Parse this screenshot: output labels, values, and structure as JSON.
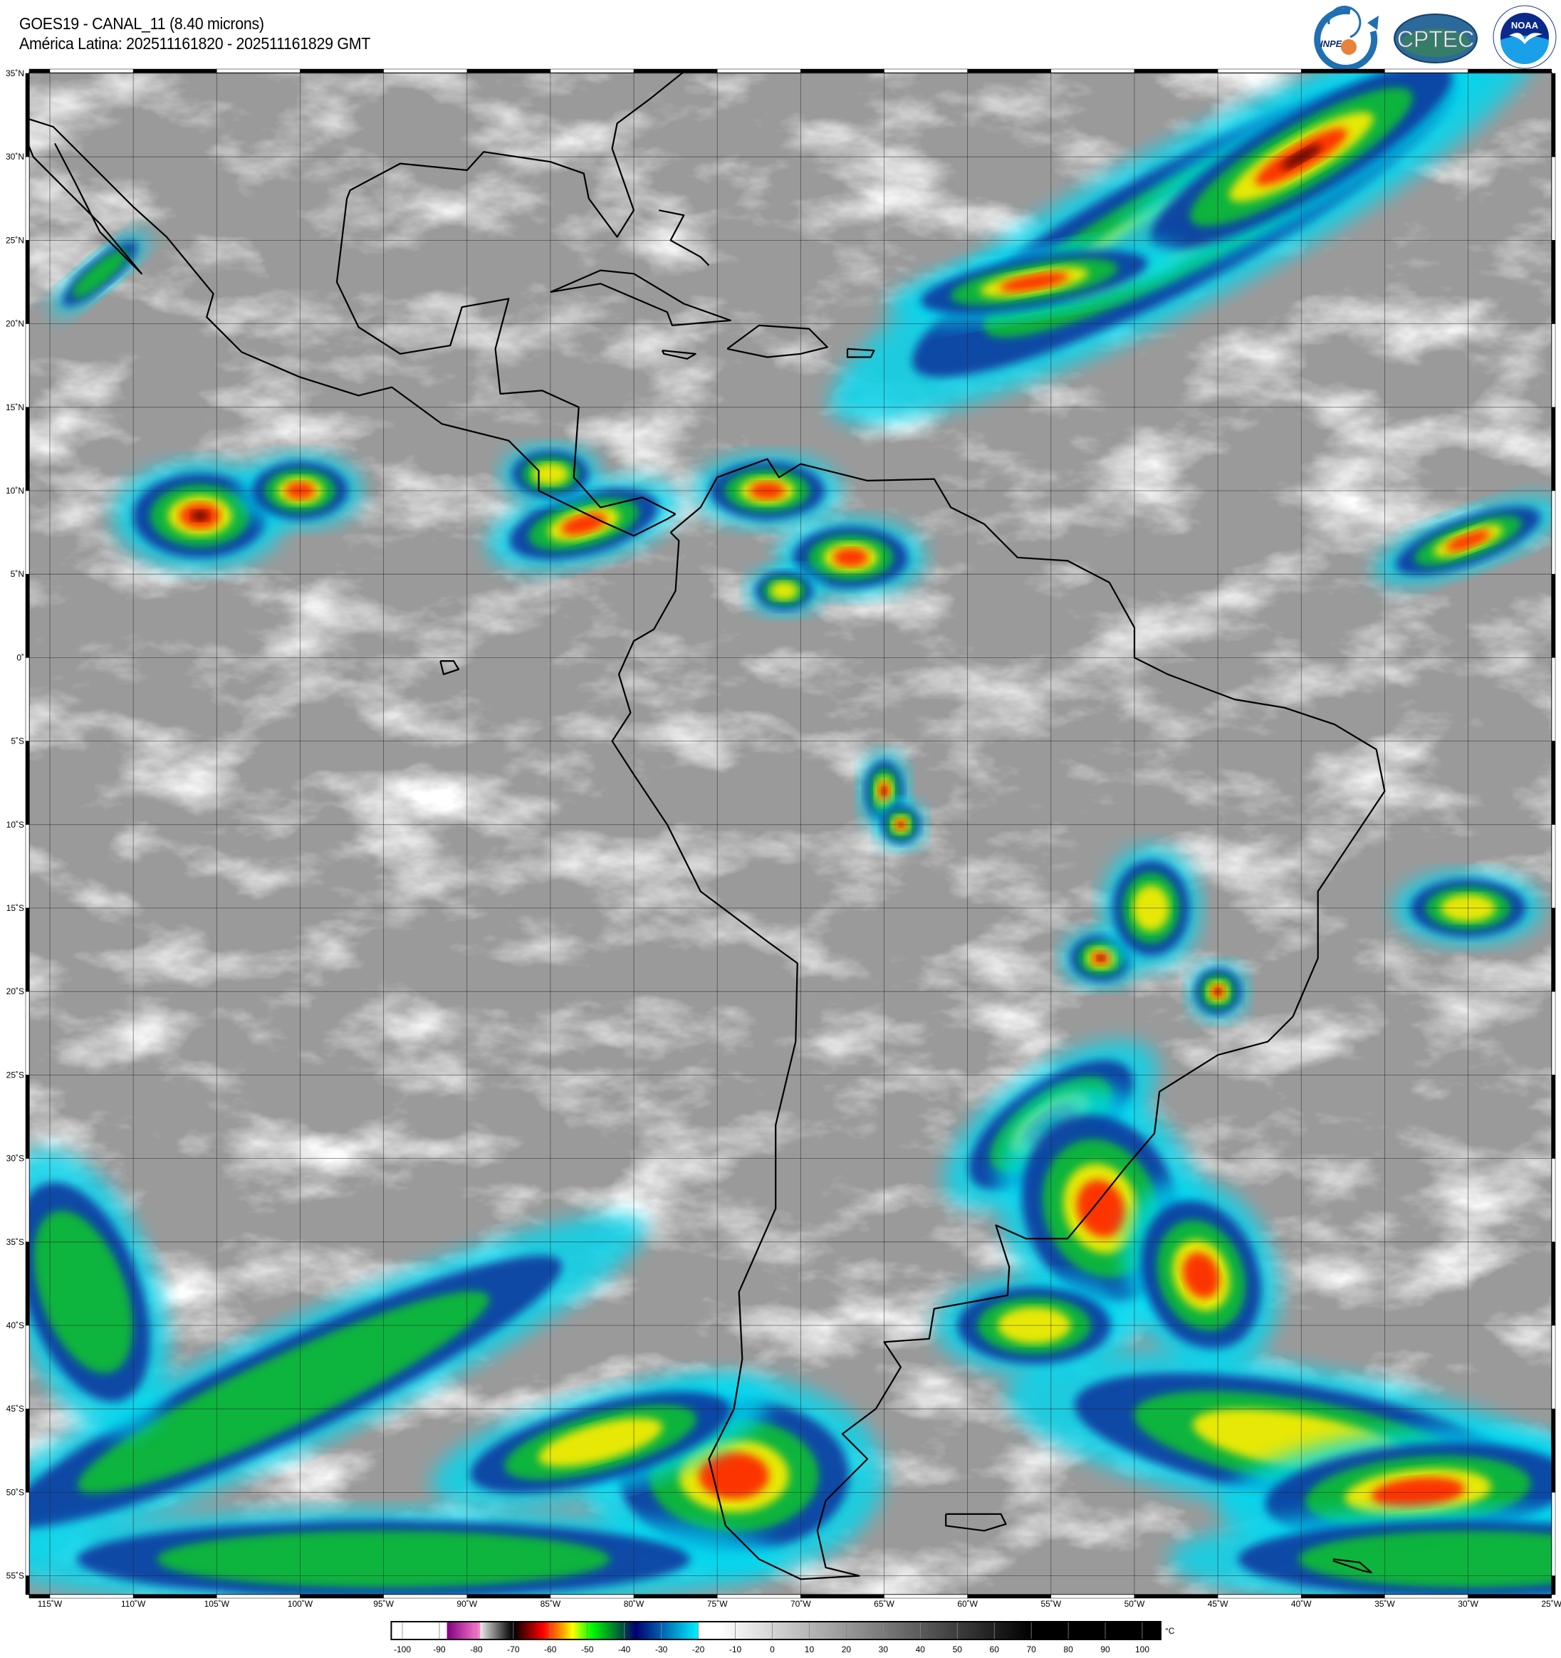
{
  "header": {
    "title_line1": "GOES19 - CANAL_11 (8.40 microns)",
    "title_line2": "América Latina: 202511161820 - 202511161829 GMT"
  },
  "logos": [
    {
      "name": "INPE",
      "text": "INPE"
    },
    {
      "name": "CPTEC",
      "text": "CPTEC"
    },
    {
      "name": "NOAA",
      "text": "NOAA",
      "ring_text": "NATIONAL OCEANIC AND ATMOSPHERIC ADMINISTRATION · U.S. DEPARTMENT OF COMMERCE"
    }
  ],
  "map": {
    "lat_labels": [
      "35˚N",
      "30˚N",
      "25˚N",
      "20˚N",
      "15˚N",
      "10˚N",
      "5˚N",
      "0˚",
      "5˚S",
      "10˚S",
      "15˚S",
      "20˚S",
      "25˚S",
      "30˚S",
      "35˚S",
      "40˚S",
      "45˚S",
      "50˚S",
      "55˚S"
    ],
    "lon_labels": [
      "115˚W",
      "110˚W",
      "105˚W",
      "100˚W",
      "95˚W",
      "90˚W",
      "85˚W",
      "80˚W",
      "75˚W",
      "70˚W",
      "65˚W",
      "60˚W",
      "55˚W",
      "50˚W",
      "45˚W",
      "40˚W",
      "35˚W",
      "30˚W",
      "25˚W"
    ],
    "background_color": "#9a9a9a",
    "coastline_color": "#000000"
  },
  "colorbar": {
    "unit": "°C",
    "ticks": [
      "-100",
      "-90",
      "-80",
      "-70",
      "-60",
      "-50",
      "-40",
      "-30",
      "-20",
      "-10",
      "0",
      "10",
      "20",
      "30",
      "40",
      "50",
      "60",
      "70",
      "80",
      "90",
      "100"
    ],
    "stops": [
      {
        "value": -103,
        "color": "#ffffff"
      },
      {
        "value": -88,
        "color": "#ffffff"
      },
      {
        "value": -87.9,
        "color": "#800080"
      },
      {
        "value": -79,
        "color": "#ff80d0"
      },
      {
        "value": -78.9,
        "color": "#e8e8e8"
      },
      {
        "value": -71.5,
        "color": "#202020"
      },
      {
        "value": -70,
        "color": "#000000"
      },
      {
        "value": -62,
        "color": "#ff0000"
      },
      {
        "value": -57,
        "color": "#ff9900"
      },
      {
        "value": -54,
        "color": "#ffff00"
      },
      {
        "value": -49,
        "color": "#00ff00"
      },
      {
        "value": -42,
        "color": "#007030"
      },
      {
        "value": -37,
        "color": "#000070"
      },
      {
        "value": -30,
        "color": "#0060b0"
      },
      {
        "value": -20.1,
        "color": "#00f0ff"
      },
      {
        "value": -20,
        "color": "#ffffff"
      },
      {
        "value": -14,
        "color": "#ffffff"
      },
      {
        "value": 70,
        "color": "#000000"
      },
      {
        "value": 105,
        "color": "#000000"
      }
    ]
  }
}
